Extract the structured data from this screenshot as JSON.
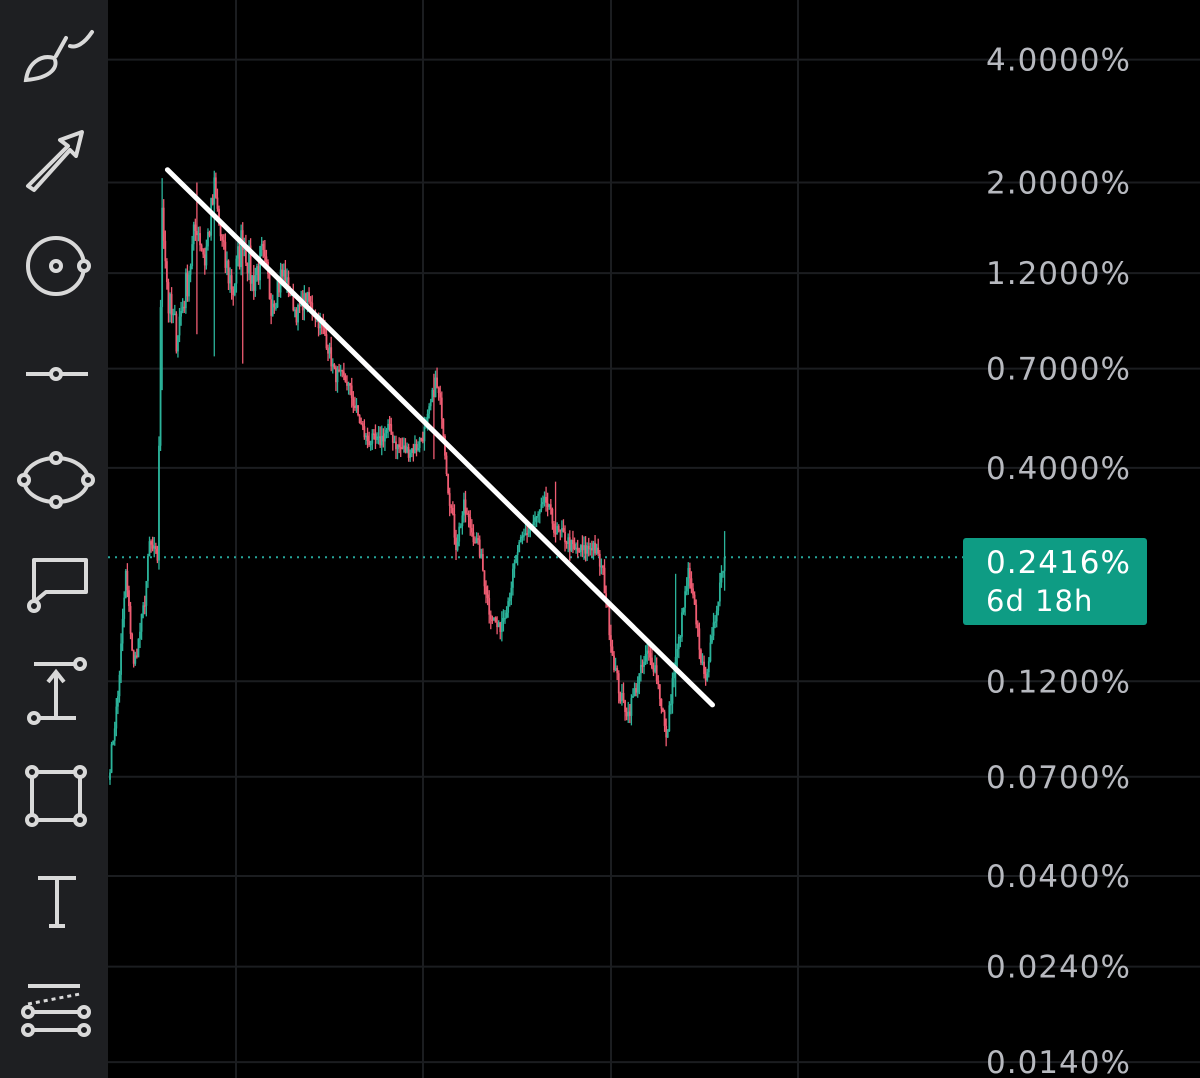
{
  "toolbar": {
    "tools": [
      {
        "name": "brush-icon"
      },
      {
        "name": "arrow-icon"
      },
      {
        "name": "circle-icon"
      },
      {
        "name": "horizontal-ray-icon"
      },
      {
        "name": "ellipse-icon"
      },
      {
        "name": "callout-icon"
      },
      {
        "name": "price-range-icon"
      },
      {
        "name": "rectangle-icon"
      },
      {
        "name": "text-icon"
      },
      {
        "name": "parallel-channel-icon"
      }
    ]
  },
  "colors": {
    "background": "#000000",
    "toolbar": "#1e1f22",
    "up": "#2bb39a",
    "down": "#ef5c72",
    "grid": "#1b1d20",
    "axis_text": "#b7b9bf",
    "price_line": "#26a69a",
    "trendline": "#ffffff",
    "price_tag": "#0e9c84"
  },
  "price_tag": {
    "value": "0.2416%",
    "countdown": "6d 18h"
  },
  "chart_data": {
    "type": "candlestick",
    "y_scale": "log",
    "y_unit": "%",
    "ylim": [
      0.0128,
      5.6
    ],
    "grid": true,
    "y_ticks": [
      {
        "value": 4.0,
        "label": "4.0000%"
      },
      {
        "value": 2.0,
        "label": "2.0000%"
      },
      {
        "value": 1.2,
        "label": "1.2000%"
      },
      {
        "value": 0.7,
        "label": "0.7000%"
      },
      {
        "value": 0.4,
        "label": "0.4000%"
      },
      {
        "value": 0.12,
        "label": "0.1200%"
      },
      {
        "value": 0.07,
        "label": "0.0700%"
      },
      {
        "value": 0.04,
        "label": "0.0400%"
      },
      {
        "value": 0.024,
        "label": "0.0240%"
      },
      {
        "value": 0.014,
        "label": "0.0140%"
      }
    ],
    "last_price": 0.2416,
    "trendline": {
      "from": {
        "bar": 30,
        "value": 2.15
      },
      "to": {
        "bar": 375,
        "value": 0.105
      }
    },
    "close_path": [
      [
        0,
        0.075
      ],
      [
        5,
        0.11
      ],
      [
        10,
        0.22
      ],
      [
        15,
        0.13
      ],
      [
        18,
        0.15
      ],
      [
        22,
        0.19
      ],
      [
        25,
        0.26
      ],
      [
        30,
        0.24
      ],
      [
        33,
        1.8
      ],
      [
        37,
        1.0
      ],
      [
        42,
        0.85
      ],
      [
        48,
        1.1
      ],
      [
        55,
        1.6
      ],
      [
        60,
        1.3
      ],
      [
        66,
        1.9
      ],
      [
        72,
        1.3
      ],
      [
        78,
        1.1
      ],
      [
        84,
        1.5
      ],
      [
        90,
        1.15
      ],
      [
        96,
        1.3
      ],
      [
        102,
        1.05
      ],
      [
        110,
        1.2
      ],
      [
        118,
        0.95
      ],
      [
        124,
        1.05
      ],
      [
        130,
        0.95
      ],
      [
        136,
        0.85
      ],
      [
        142,
        0.68
      ],
      [
        150,
        0.65
      ],
      [
        156,
        0.55
      ],
      [
        162,
        0.47
      ],
      [
        170,
        0.46
      ],
      [
        176,
        0.5
      ],
      [
        182,
        0.45
      ],
      [
        188,
        0.44
      ],
      [
        194,
        0.45
      ],
      [
        200,
        0.5
      ],
      [
        206,
        0.65
      ],
      [
        210,
        0.55
      ],
      [
        214,
        0.36
      ],
      [
        219,
        0.26
      ],
      [
        224,
        0.32
      ],
      [
        229,
        0.28
      ],
      [
        234,
        0.25
      ],
      [
        240,
        0.18
      ],
      [
        246,
        0.16
      ],
      [
        252,
        0.19
      ],
      [
        258,
        0.25
      ],
      [
        264,
        0.28
      ],
      [
        270,
        0.3
      ],
      [
        276,
        0.33
      ],
      [
        282,
        0.28
      ],
      [
        288,
        0.27
      ],
      [
        294,
        0.25
      ],
      [
        300,
        0.25
      ],
      [
        306,
        0.26
      ],
      [
        312,
        0.22
      ],
      [
        318,
        0.14
      ],
      [
        323,
        0.11
      ],
      [
        328,
        0.1
      ],
      [
        334,
        0.12
      ],
      [
        340,
        0.14
      ],
      [
        345,
        0.13
      ],
      [
        350,
        0.1
      ],
      [
        352,
        0.085
      ],
      [
        356,
        0.12
      ],
      [
        360,
        0.15
      ],
      [
        366,
        0.22
      ],
      [
        371,
        0.17
      ],
      [
        376,
        0.12
      ],
      [
        381,
        0.15
      ],
      [
        386,
        0.21
      ],
      [
        389,
        0.2416
      ]
    ],
    "spikes": [
      {
        "bar": 33,
        "high": 2.05,
        "low": 0.62
      },
      {
        "bar": 55,
        "high": 2.0,
        "low": 0.85
      },
      {
        "bar": 66,
        "high": 1.85,
        "low": 0.75
      },
      {
        "bar": 84,
        "high": 1.6,
        "low": 0.72
      },
      {
        "bar": 205,
        "high": 0.68,
        "low": 0.42
      },
      {
        "bar": 282,
        "high": 0.37,
        "low": 0.27
      },
      {
        "bar": 358,
        "high": 0.22,
        "low": 0.11
      },
      {
        "bar": 389,
        "high": 0.28,
        "low": 0.2
      }
    ]
  }
}
